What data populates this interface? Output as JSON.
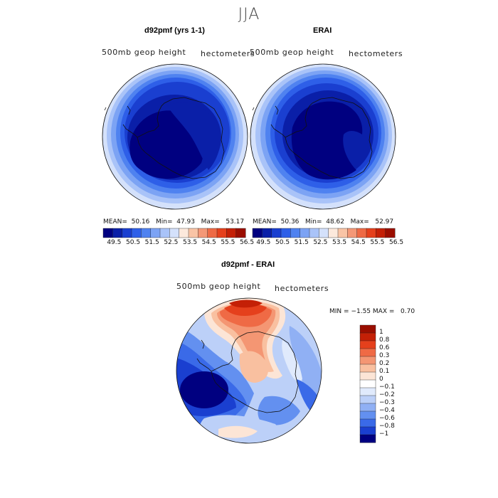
{
  "title": "JJA",
  "colors": {
    "diverging": [
      "#000080",
      "#0a1fa8",
      "#1a3fd0",
      "#2e5fe8",
      "#4f82f0",
      "#7ca3f4",
      "#a9c3f8",
      "#d4e1fb",
      "#fce9dc",
      "#f9c4a6",
      "#f49877",
      "#ee6a45",
      "#e5401c",
      "#c42006",
      "#9a0e00"
    ],
    "diff": [
      "#000080",
      "#1a3fd0",
      "#3a6ae8",
      "#6390f0",
      "#90b0f4",
      "#bcd0f8",
      "#e0eafc",
      "#ffffff",
      "#fce5d6",
      "#f9c0a0",
      "#f49673",
      "#ef6a45",
      "#e5401c",
      "#c42006",
      "#9a0e00"
    ]
  },
  "panels": [
    {
      "title": "d92pmf (yrs 1-1)",
      "variable": "500mb  geop  height",
      "units": "hectometers",
      "stats": {
        "mean_label": "MEAN=",
        "mean": "50.16",
        "min_label": "Min=",
        "min": "47.93",
        "max_label": "Max=",
        "max": "53.17"
      },
      "colorbar_ticks": [
        "49.5",
        "50.5",
        "51.5",
        "52.5",
        "53.5",
        "54.5",
        "55.5",
        "56.5"
      ]
    },
    {
      "title": "ERAI",
      "variable": "500mb  geop  height",
      "units": "hectometers",
      "stats": {
        "mean_label": "MEAN=",
        "mean": "50.36",
        "min_label": "Min=",
        "min": "48.62",
        "max_label": "Max=",
        "max": "52.97"
      },
      "colorbar_ticks": [
        "49.5",
        "50.5",
        "51.5",
        "52.5",
        "53.5",
        "54.5",
        "55.5",
        "56.5"
      ]
    }
  ],
  "difference": {
    "title": "d92pmf - ERAI",
    "variable": "500mb  geop  height",
    "units": "hectometers",
    "min_label": "MIN =",
    "min": "−1.55",
    "max_label": "MAX =",
    "max": "0.70",
    "colorbar_labels": [
      "1",
      "0.8",
      "0.6",
      "0.3",
      "0.2",
      "0.1",
      "0",
      "−0.1",
      "−0.2",
      "−0.3",
      "−0.4",
      "−0.6",
      "−0.8",
      "−1"
    ]
  }
}
